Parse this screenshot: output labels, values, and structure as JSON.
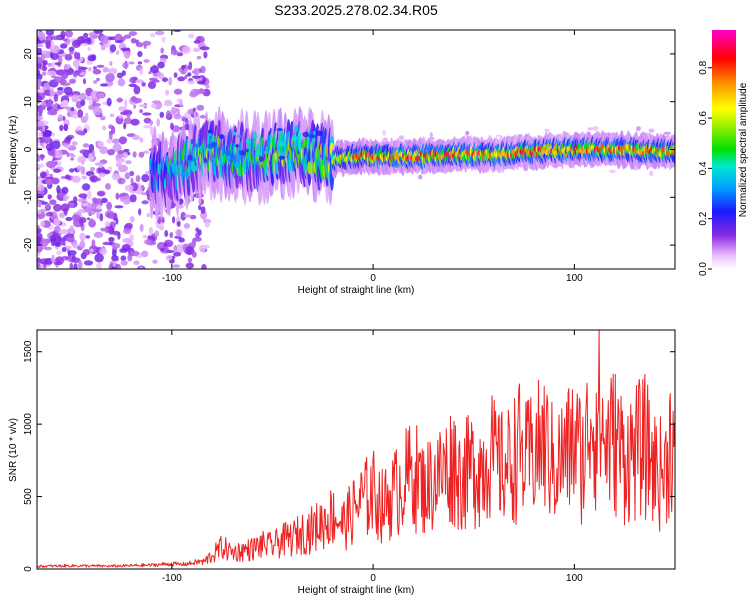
{
  "chart_data": [
    {
      "id": "spectrogram",
      "type": "heatmap",
      "title": "S233.2025.278.02.34.R05",
      "xlabel": "Height of straight line (km)",
      "ylabel": "Frequency (Hz)",
      "xlim": [
        -167,
        150
      ],
      "ylim": [
        -25,
        25
      ],
      "xticks": [
        -100,
        0,
        100
      ],
      "yticks": [
        -20,
        -10,
        0,
        10,
        20
      ],
      "signal_band": {
        "x": [
          -167,
          -120,
          -100,
          -90,
          -80,
          -70,
          -60,
          -50,
          -40,
          -30,
          -20,
          -10,
          0,
          20,
          40,
          60,
          80,
          100,
          120,
          150
        ],
        "center_hz": [
          0,
          -4,
          -5,
          -2,
          -1,
          -1,
          -2,
          -1,
          -1,
          -1,
          -2,
          -1.5,
          -1.5,
          -1.5,
          -1,
          -1,
          -0.5,
          0,
          0,
          -0.5
        ],
        "amplitude": [
          0.1,
          0.2,
          0.45,
          0.5,
          0.55,
          0.5,
          0.5,
          0.6,
          0.55,
          0.6,
          0.7,
          0.75,
          0.8,
          0.85,
          0.85,
          0.8,
          0.85,
          0.8,
          0.8,
          0.75
        ]
      },
      "colorbar": {
        "label": "Normalized spectral amplitude",
        "range": [
          0,
          0.95
        ],
        "ticks": [
          "0.0",
          "0.2",
          "0.4",
          "0.6",
          "0.8"
        ]
      }
    },
    {
      "id": "snr",
      "type": "line",
      "xlabel": "Height of straight line (km)",
      "ylabel": "SNR (10 * v/v)",
      "xlim": [
        -167,
        150
      ],
      "ylim": [
        0,
        1650
      ],
      "xticks": [
        -100,
        0,
        100
      ],
      "yticks": [
        0,
        500,
        1000,
        1500
      ],
      "color": "#ee2222",
      "series": [
        {
          "name": "SNR",
          "x": [
            -167,
            -150,
            -130,
            -110,
            -100,
            -95,
            -90,
            -85,
            -80,
            -75,
            -70,
            -65,
            -60,
            -55,
            -50,
            -45,
            -40,
            -35,
            -30,
            -25,
            -20,
            -15,
            -10,
            -5,
            0,
            5,
            10,
            15,
            20,
            25,
            30,
            35,
            38,
            40,
            43,
            45,
            50,
            55,
            58,
            60,
            65,
            70,
            72,
            75,
            80,
            85,
            90,
            95,
            100,
            105,
            108,
            110,
            112,
            115,
            120,
            125,
            130,
            135,
            140,
            145,
            148,
            150
          ],
          "y": [
            20,
            25,
            22,
            30,
            40,
            35,
            45,
            60,
            140,
            230,
            170,
            190,
            210,
            250,
            240,
            300,
            320,
            380,
            420,
            480,
            560,
            460,
            600,
            720,
            800,
            650,
            780,
            900,
            1020,
            840,
            920,
            1000,
            1060,
            1130,
            950,
            980,
            1060,
            1050,
            1260,
            1120,
            1030,
            1150,
            1290,
            1080,
            1210,
            1300,
            1060,
            1170,
            1310,
            1110,
            1650,
            1450,
            1650,
            1270,
            1360,
            1150,
            1220,
            1290,
            1050,
            980,
            1420,
            1180
          ]
        }
      ]
    }
  ]
}
